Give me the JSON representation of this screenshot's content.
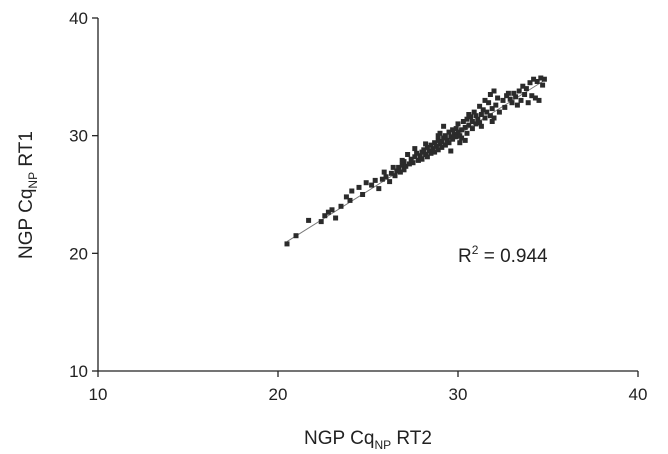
{
  "chart_data": {
    "type": "scatter",
    "xlabel": {
      "main": "NGP Cq",
      "sub": "NP",
      "suffix": " RT2"
    },
    "ylabel": {
      "main": "NGP Cq",
      "sub": "NP",
      "suffix": " RT1"
    },
    "xlim": [
      10,
      40
    ],
    "ylim": [
      10,
      40
    ],
    "xticks": [
      "10",
      "20",
      "30",
      "40"
    ],
    "yticks": [
      "10",
      "20",
      "30",
      "40"
    ],
    "grid": false,
    "trendline": {
      "x": [
        20.5,
        34.8
      ],
      "y": [
        21.0,
        34.7
      ]
    },
    "annotation": {
      "text_main": "R",
      "text_sup": "2",
      "text_rest": " = 0.944"
    },
    "series": [
      {
        "points": [
          [
            20.5,
            20.8
          ],
          [
            21.0,
            21.5
          ],
          [
            21.7,
            22.8
          ],
          [
            22.4,
            22.7
          ],
          [
            22.6,
            23.2
          ],
          [
            22.8,
            23.5
          ],
          [
            23.0,
            23.7
          ],
          [
            23.2,
            23.0
          ],
          [
            23.5,
            24.0
          ],
          [
            23.8,
            24.8
          ],
          [
            24.0,
            24.5
          ],
          [
            24.1,
            25.3
          ],
          [
            24.5,
            25.6
          ],
          [
            24.7,
            25.0
          ],
          [
            24.9,
            26.0
          ],
          [
            25.2,
            25.8
          ],
          [
            25.4,
            26.2
          ],
          [
            25.6,
            25.5
          ],
          [
            25.8,
            26.3
          ],
          [
            26.0,
            26.5
          ],
          [
            26.2,
            26.1
          ],
          [
            26.3,
            26.8
          ],
          [
            26.5,
            26.6
          ],
          [
            26.6,
            27.0
          ],
          [
            26.7,
            27.3
          ],
          [
            26.8,
            26.9
          ],
          [
            26.9,
            27.5
          ],
          [
            27.0,
            27.1
          ],
          [
            27.0,
            27.8
          ],
          [
            27.1,
            27.4
          ],
          [
            27.2,
            28.4
          ],
          [
            27.3,
            27.6
          ],
          [
            27.4,
            28.0
          ],
          [
            27.5,
            27.7
          ],
          [
            27.6,
            28.2
          ],
          [
            27.7,
            28.5
          ],
          [
            27.8,
            27.9
          ],
          [
            27.9,
            28.3
          ],
          [
            28.0,
            28.6
          ],
          [
            28.0,
            28.0
          ],
          [
            28.1,
            28.8
          ],
          [
            28.2,
            28.4
          ],
          [
            28.3,
            29.0
          ],
          [
            28.3,
            28.2
          ],
          [
            28.4,
            28.7
          ],
          [
            28.5,
            29.2
          ],
          [
            28.5,
            28.5
          ],
          [
            28.6,
            28.9
          ],
          [
            28.7,
            29.4
          ],
          [
            28.7,
            28.6
          ],
          [
            28.8,
            29.1
          ],
          [
            28.9,
            29.6
          ],
          [
            28.9,
            28.8
          ],
          [
            29.0,
            29.3
          ],
          [
            29.0,
            30.2
          ],
          [
            29.1,
            29.0
          ],
          [
            29.1,
            29.5
          ],
          [
            29.2,
            29.8
          ],
          [
            29.3,
            29.2
          ],
          [
            29.3,
            30.0
          ],
          [
            29.4,
            29.6
          ],
          [
            29.5,
            30.3
          ],
          [
            29.5,
            29.4
          ],
          [
            29.6,
            29.9
          ],
          [
            29.7,
            30.5
          ],
          [
            29.7,
            29.7
          ],
          [
            29.8,
            30.1
          ],
          [
            29.9,
            30.6
          ],
          [
            29.9,
            29.9
          ],
          [
            30.0,
            30.3
          ],
          [
            30.0,
            31.0
          ],
          [
            30.1,
            30.0
          ],
          [
            30.2,
            30.5
          ],
          [
            30.2,
            29.8
          ],
          [
            30.3,
            31.2
          ],
          [
            30.4,
            30.7
          ],
          [
            30.5,
            30.2
          ],
          [
            30.5,
            31.4
          ],
          [
            30.6,
            30.9
          ],
          [
            30.7,
            31.6
          ],
          [
            30.8,
            30.6
          ],
          [
            30.8,
            31.2
          ],
          [
            30.9,
            32.0
          ],
          [
            31.0,
            31.0
          ],
          [
            31.0,
            31.7
          ],
          [
            31.1,
            31.4
          ],
          [
            31.2,
            32.5
          ],
          [
            31.2,
            31.1
          ],
          [
            31.3,
            31.8
          ],
          [
            31.4,
            32.2
          ],
          [
            31.5,
            33.0
          ],
          [
            31.5,
            31.5
          ],
          [
            31.6,
            32.0
          ],
          [
            31.7,
            32.8
          ],
          [
            31.8,
            31.7
          ],
          [
            31.8,
            33.5
          ],
          [
            31.9,
            32.3
          ],
          [
            32.0,
            33.8
          ],
          [
            32.0,
            31.5
          ],
          [
            32.1,
            32.6
          ],
          [
            32.2,
            33.2
          ],
          [
            32.3,
            32.0
          ],
          [
            32.5,
            33.0
          ],
          [
            32.6,
            32.4
          ],
          [
            32.7,
            33.4
          ],
          [
            32.9,
            33.1
          ],
          [
            33.0,
            32.8
          ],
          [
            33.1,
            33.6
          ],
          [
            33.2,
            33.3
          ],
          [
            33.4,
            33.8
          ],
          [
            33.5,
            33.0
          ],
          [
            33.6,
            34.2
          ],
          [
            33.7,
            33.5
          ],
          [
            33.8,
            34.0
          ],
          [
            33.9,
            32.8
          ],
          [
            34.0,
            34.5
          ],
          [
            34.1,
            33.4
          ],
          [
            34.2,
            34.8
          ],
          [
            34.3,
            33.2
          ],
          [
            34.4,
            34.6
          ],
          [
            34.5,
            33.0
          ],
          [
            34.6,
            34.9
          ],
          [
            34.7,
            34.3
          ],
          [
            34.8,
            34.8
          ],
          [
            31.3,
            30.8
          ],
          [
            30.4,
            29.6
          ],
          [
            29.6,
            28.7
          ],
          [
            28.9,
            30.0
          ],
          [
            27.6,
            28.9
          ],
          [
            26.9,
            27.9
          ],
          [
            25.9,
            26.9
          ],
          [
            26.4,
            27.3
          ],
          [
            28.2,
            29.3
          ],
          [
            29.2,
            30.8
          ],
          [
            30.6,
            31.8
          ],
          [
            32.8,
            33.6
          ],
          [
            33.3,
            32.6
          ],
          [
            31.9,
            31.2
          ],
          [
            30.1,
            29.4
          ]
        ]
      }
    ]
  }
}
